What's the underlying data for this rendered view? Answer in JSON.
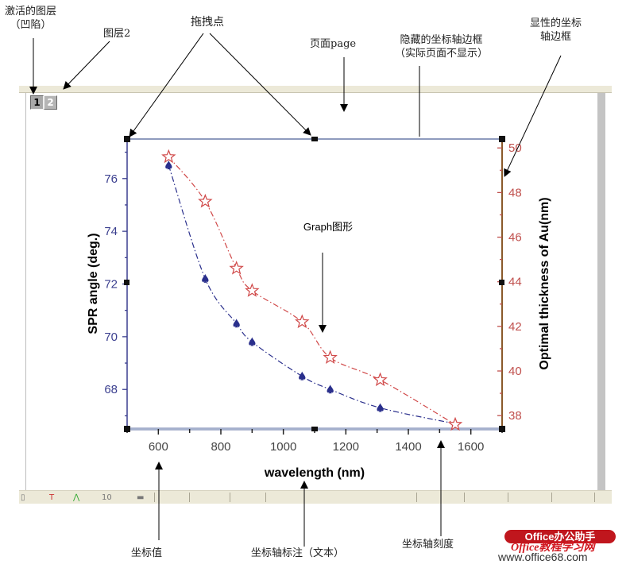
{
  "annotations": {
    "active_layer": "激活的图层",
    "active_layer_sub": "（凹陷）",
    "layer2": "图层2",
    "drag_points": "拖拽点",
    "page": "页面page",
    "hidden_frame": "隐藏的坐标轴边框",
    "hidden_frame_sub": "（实际页面不显示）",
    "visible_frame": "显性的坐标",
    "visible_frame_sub": "轴边框",
    "graph": "Graph图形",
    "tick_values": "坐标值",
    "axis_title": "坐标轴标注（文本）",
    "axis_ticks": "坐标轴刻度"
  },
  "layers": [
    {
      "label": "1",
      "active": true
    },
    {
      "label": "2",
      "active": false
    }
  ],
  "watermark": {
    "line1": "Office办公助手",
    "line2": "Office教程学习网",
    "line3": "www.office68.com",
    "brand_color": "#c0161d"
  },
  "colors": {
    "left_axis": "#3b3f8f",
    "right_axis": "#c0504d",
    "right_axis_line": "#8a5a2b",
    "frame": "#6a7aa8",
    "blue_series": "#2a2f8c",
    "red_series": "#d04848"
  },
  "chart_data": {
    "type": "line",
    "title": "",
    "xlabel": "wavelength (nm)",
    "ylabel": "SPR angle (deg.)",
    "y2label": "Optimal thickness of Au(nm)",
    "xlim": [
      500,
      1700
    ],
    "ylim": [
      66.5,
      77.5
    ],
    "y2lim": [
      37.4,
      50.4
    ],
    "xticks": [
      "600",
      "800",
      "1000",
      "1200",
      "1400",
      "1600"
    ],
    "yticks": [
      "68",
      "70",
      "72",
      "74",
      "76"
    ],
    "y2ticks": [
      "38",
      "40",
      "42",
      "44",
      "46",
      "48",
      "50"
    ],
    "grid": false,
    "legend": "none",
    "x": [
      633,
      750,
      850,
      900,
      1060,
      1150,
      1310,
      1550
    ],
    "series": [
      {
        "name": "SPR angle (deg.)",
        "axis": "left",
        "marker": "spade",
        "line": "dash-dot",
        "color": "#2a2f8c",
        "values": [
          76.5,
          72.2,
          70.5,
          69.8,
          68.5,
          68.0,
          67.3,
          66.7
        ]
      },
      {
        "name": "Optimal thickness of Au(nm)",
        "axis": "right",
        "marker": "hollow-star",
        "line": "dash-dot",
        "color": "#d04848",
        "values": [
          49.6,
          47.6,
          44.6,
          43.6,
          42.2,
          40.6,
          39.6,
          37.6
        ]
      }
    ]
  }
}
